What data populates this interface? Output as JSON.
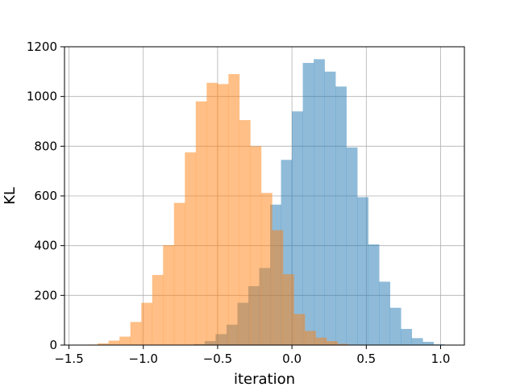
{
  "chart_data": {
    "type": "bar",
    "xlabel": "iteration",
    "ylabel": "KL",
    "xlim": [
      -1.53,
      1.16
    ],
    "ylim": [
      0,
      1200
    ],
    "grid": true,
    "xticks": [
      -1.5,
      -1.0,
      -0.5,
      0.0,
      0.5,
      1.0
    ],
    "xtick_labels": [
      "−1.5",
      "−1.0",
      "−0.5",
      "0.0",
      "0.5",
      "1.0"
    ],
    "yticks": [
      0,
      200,
      400,
      600,
      800,
      1000,
      1200
    ],
    "ytick_labels": [
      "0",
      "200",
      "400",
      "600",
      "800",
      "1000",
      "1200"
    ],
    "series": [
      {
        "color": "#1f77b4",
        "opacity": 0.5,
        "bin_start": -0.66,
        "bin_width": 0.0733,
        "values": [
          4,
          16,
          44,
          82,
          170,
          237,
          310,
          565,
          745,
          940,
          1135,
          1150,
          1100,
          1040,
          795,
          595,
          405,
          255,
          150,
          65,
          28,
          13,
          3,
          1
        ]
      },
      {
        "color": "#ff7f0e",
        "opacity": 0.5,
        "bin_start": -1.38,
        "bin_width": 0.0733,
        "values": [
          2,
          7,
          18,
          34,
          93,
          170,
          282,
          402,
          572,
          775,
          980,
          1055,
          1050,
          1090,
          905,
          800,
          612,
          462,
          285,
          125,
          57,
          30,
          16,
          5,
          1
        ]
      }
    ]
  }
}
